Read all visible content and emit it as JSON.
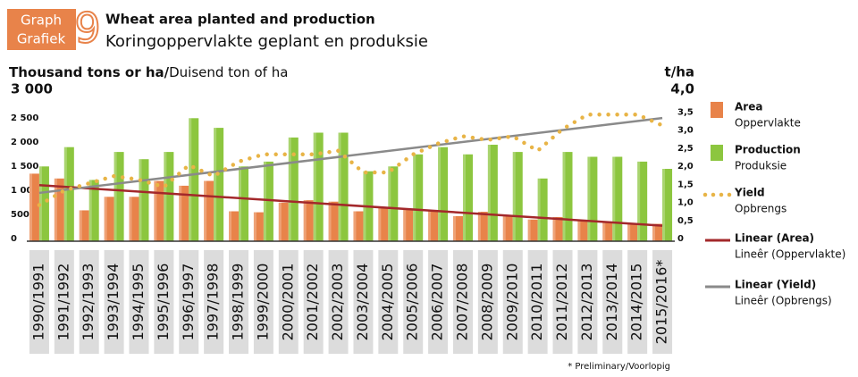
{
  "chart_data": {
    "type": "bar",
    "badge": {
      "label_en": "Graph",
      "label_af": "Grafiek",
      "number": "9"
    },
    "title": "Wheat area planted and production",
    "subtitle": "Koringoppervlakte geplant en produksie",
    "y_label_bold": "Thousand tons or ha/",
    "y_label": "Duisend ton of ha",
    "y2_label": "t/ha",
    "footnote": "* Preliminary/Voorlopig",
    "categories": [
      "1990/1991",
      "1991/1992",
      "1992/1993",
      "1993/1994",
      "1994/1995",
      "1995/1996",
      "1996/1997",
      "1997/1998",
      "1998/1999",
      "1999/2000",
      "2000/2001",
      "2001/2002",
      "2002/2003",
      "2003/2004",
      "2004/2005",
      "2005/2006",
      "2006/2007",
      "2007/2008",
      "2008/2009",
      "2009/2010",
      "2010/2011",
      "2011/2012",
      "2012/2013",
      "2013/2014",
      "2014/2015",
      "2015/2016*"
    ],
    "series": [
      {
        "name": "Area",
        "name_af": "Oppervlakte",
        "type": "bar",
        "color": "#e8834a",
        "values": [
          1400,
          1300,
          640,
          920,
          920,
          1250,
          1150,
          1250,
          620,
          600,
          800,
          850,
          820,
          620,
          690,
          660,
          640,
          520,
          610,
          530,
          450,
          500,
          420,
          400,
          370,
          360
        ]
      },
      {
        "name": "Production",
        "name_af": "Produksie",
        "type": "bar",
        "color": "#8cc63f",
        "values": [
          1550,
          1950,
          1270,
          1850,
          1700,
          1850,
          2550,
          2350,
          1550,
          1650,
          2150,
          2250,
          2250,
          1450,
          1550,
          1800,
          1950,
          1800,
          2000,
          1850,
          1300,
          1850,
          1750,
          1750,
          1650,
          1500
        ]
      },
      {
        "name": "Yield",
        "name_af": "Opbrengs",
        "type": "line",
        "axis": "y2",
        "color": "#e8b446",
        "values": [
          1.0,
          1.4,
          1.6,
          1.8,
          1.7,
          1.5,
          2.1,
          1.8,
          2.2,
          2.4,
          2.4,
          2.4,
          2.5,
          1.9,
          1.9,
          2.4,
          2.7,
          2.9,
          2.8,
          2.9,
          2.5,
          3.1,
          3.5,
          3.5,
          3.5,
          3.2
        ]
      }
    ],
    "trendlines": [
      {
        "name": "Linear (Area)",
        "name_af": "Lineêr (Oppervlakte)",
        "series": 0,
        "color": "#a3282b"
      },
      {
        "name": "Linear (Yield)",
        "name_af": "Lineêr (Opbrengs)",
        "series": 2,
        "color": "#8a8a8a"
      }
    ],
    "ylim": [
      0,
      3000
    ],
    "yticks": [
      0,
      500,
      {
        "value": 1000,
        "label": "1 000"
      },
      {
        "value": 1500,
        "label": "1 500"
      },
      {
        "value": 2000,
        "label": "2 000"
      },
      {
        "value": 2500,
        "label": "2 500"
      },
      {
        "value": 3000,
        "label": "3 000"
      }
    ],
    "y2lim": [
      0,
      4
    ],
    "y2ticks": [
      0,
      {
        "value": 0.5,
        "label": "0,5"
      },
      {
        "value": 1,
        "label": "1,0"
      },
      {
        "value": 1.5,
        "label": "1,5"
      },
      {
        "value": 2,
        "label": "2,0"
      },
      {
        "value": 2.5,
        "label": "2,5"
      },
      {
        "value": 3,
        "label": "3,0"
      },
      {
        "value": 3.5,
        "label": "3,5"
      },
      {
        "value": 4,
        "label": "4,0"
      }
    ]
  }
}
